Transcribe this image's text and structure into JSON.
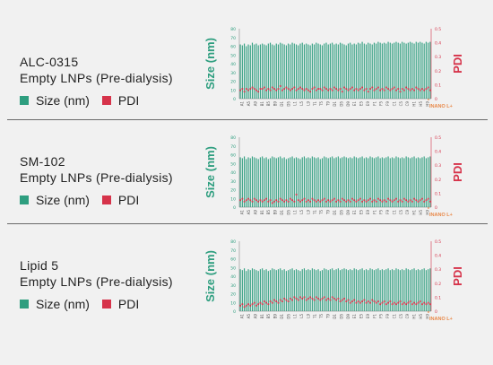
{
  "colors": {
    "size": "#2e9e7f",
    "pdi": "#d6334a",
    "inano": "#e8894a",
    "divider": "#6a6a6a"
  },
  "legend": {
    "size_label": "Size (nm)",
    "pdi_label": "PDI"
  },
  "chart_data": [
    {
      "type": "bar",
      "title": "ALC-0315",
      "subtitle": "Empty LNPs (Pre-dialysis)",
      "ylabel": "Size (nm)",
      "y2label": "PDI",
      "ylim": [
        0,
        80
      ],
      "y2lim": [
        0,
        0.5
      ],
      "yticks": [
        0,
        10,
        20,
        30,
        40,
        50,
        60,
        70,
        80
      ],
      "y2ticks": [
        "0",
        "0.1",
        "0.2",
        "0.3",
        "0.4",
        "0.5"
      ],
      "xticks": [
        "A1",
        "A5",
        "A9",
        "B1",
        "B5",
        "B9",
        "D1",
        "D5",
        "L1",
        "L5",
        "L9",
        "T1",
        "T5",
        "T9",
        "D1",
        "D5",
        "D9",
        "E1",
        "E5",
        "E9",
        "F1",
        "F5",
        "F9",
        "C1",
        "C5",
        "C9",
        "H1",
        "H5",
        "H9"
      ],
      "brand": "INANO L+",
      "size_values": [
        62,
        61,
        63,
        60,
        62,
        61,
        64,
        62,
        63,
        61,
        62,
        63,
        62,
        61,
        63,
        64,
        62,
        61,
        63,
        62,
        64,
        63,
        62,
        61,
        63,
        62,
        64,
        63,
        62,
        61,
        63,
        64,
        62,
        63,
        62,
        61,
        63,
        62,
        64,
        63,
        62,
        61,
        63,
        64,
        62,
        63,
        64,
        62,
        63,
        62,
        64,
        63,
        62,
        61,
        63,
        64,
        62,
        63,
        62,
        64,
        63,
        65,
        63,
        62,
        64,
        63,
        62,
        64,
        63,
        65,
        64,
        63,
        64,
        63,
        65,
        64,
        63,
        64,
        65,
        64,
        63,
        65,
        64,
        63,
        64,
        65,
        64,
        63,
        65,
        64,
        65,
        64,
        63,
        65,
        64,
        65
      ],
      "pdi_values": [
        0.06,
        0.07,
        0.05,
        0.07,
        0.06,
        0.07,
        0.08,
        0.07,
        0.06,
        0.05,
        0.07,
        0.07,
        0.08,
        0.06,
        0.07,
        0.06,
        0.08,
        0.07,
        0.06,
        0.07,
        0.09,
        0.06,
        0.07,
        0.08,
        0.07,
        0.06,
        0.07,
        0.08,
        0.06,
        0.07,
        0.08,
        0.07,
        0.06,
        0.07,
        0.06,
        0.05,
        0.07,
        0.08,
        0.06,
        0.07,
        0.07,
        0.06,
        0.08,
        0.07,
        0.06,
        0.07,
        0.06,
        0.08,
        0.07,
        0.06,
        0.07,
        0.05,
        0.08,
        0.07,
        0.06,
        0.07,
        0.08,
        0.06,
        0.07,
        0.06,
        0.07,
        0.08,
        0.06,
        0.07,
        0.05,
        0.07,
        0.08,
        0.06,
        0.07,
        0.08,
        0.06,
        0.07,
        0.06,
        0.08,
        0.07,
        0.06,
        0.07,
        0.08,
        0.06,
        0.07,
        0.05,
        0.07,
        0.06,
        0.08,
        0.07,
        0.06,
        0.07,
        0.06,
        0.08,
        0.07,
        0.06,
        0.07,
        0.06,
        0.07,
        0.08,
        0.06
      ]
    },
    {
      "type": "bar",
      "title": "SM-102",
      "subtitle": "Empty LNPs (Pre-dialysis)",
      "ylabel": "Size (nm)",
      "y2label": "PDI",
      "ylim": [
        0,
        80
      ],
      "y2lim": [
        0,
        0.5
      ],
      "yticks": [
        0,
        10,
        20,
        30,
        40,
        50,
        60,
        70,
        80
      ],
      "y2ticks": [
        "0",
        "0.1",
        "0.2",
        "0.3",
        "0.4",
        "0.5"
      ],
      "xticks": [
        "A1",
        "A5",
        "A9",
        "B1",
        "B5",
        "B9",
        "D1",
        "D5",
        "L1",
        "L5",
        "L9",
        "T1",
        "T5",
        "T9",
        "D1",
        "D5",
        "D9",
        "E1",
        "E5",
        "E9",
        "F1",
        "F5",
        "F9",
        "C1",
        "C5",
        "C9",
        "H1",
        "H5",
        "H9"
      ],
      "brand": "INANO L+",
      "size_values": [
        57,
        56,
        58,
        55,
        57,
        56,
        58,
        57,
        56,
        55,
        57,
        58,
        56,
        57,
        55,
        56,
        58,
        57,
        56,
        57,
        58,
        56,
        57,
        55,
        56,
        57,
        58,
        56,
        57,
        56,
        55,
        57,
        58,
        56,
        57,
        56,
        58,
        57,
        56,
        57,
        55,
        56,
        58,
        57,
        56,
        57,
        58,
        56,
        57,
        58,
        56,
        57,
        58,
        57,
        56,
        57,
        56,
        58,
        57,
        56,
        57,
        58,
        56,
        57,
        56,
        58,
        57,
        56,
        57,
        58,
        56,
        57,
        56,
        57,
        58,
        56,
        57,
        56,
        58,
        57,
        56,
        57,
        56,
        58,
        57,
        56,
        57,
        58,
        56,
        57,
        56,
        57,
        58,
        56,
        57,
        58
      ],
      "pdi_values": [
        0.05,
        0.06,
        0.04,
        0.05,
        0.06,
        0.05,
        0.04,
        0.06,
        0.05,
        0.04,
        0.05,
        0.04,
        0.05,
        0.06,
        0.04,
        0.05,
        0.03,
        0.04,
        0.05,
        0.04,
        0.06,
        0.05,
        0.04,
        0.05,
        0.04,
        0.06,
        0.05,
        0.04,
        0.09,
        0.05,
        0.04,
        0.05,
        0.06,
        0.04,
        0.05,
        0.04,
        0.06,
        0.05,
        0.04,
        0.05,
        0.04,
        0.05,
        0.06,
        0.04,
        0.05,
        0.04,
        0.05,
        0.06,
        0.04,
        0.05,
        0.04,
        0.06,
        0.05,
        0.04,
        0.05,
        0.04,
        0.06,
        0.05,
        0.04,
        0.05,
        0.06,
        0.04,
        0.05,
        0.04,
        0.05,
        0.06,
        0.04,
        0.05,
        0.04,
        0.06,
        0.05,
        0.04,
        0.05,
        0.04,
        0.06,
        0.05,
        0.04,
        0.05,
        0.06,
        0.04,
        0.05,
        0.04,
        0.06,
        0.05,
        0.04,
        0.05,
        0.04,
        0.06,
        0.05,
        0.04,
        0.05,
        0.06,
        0.04,
        0.05,
        0.06,
        0.04
      ]
    },
    {
      "type": "bar",
      "title": "Lipid 5",
      "subtitle": "Empty LNPs (Pre-dialysis)",
      "ylabel": "Size (nm)",
      "y2label": "PDI",
      "ylim": [
        0,
        80
      ],
      "y2lim": [
        0,
        0.5
      ],
      "yticks": [
        0,
        10,
        20,
        30,
        40,
        50,
        60,
        70,
        80
      ],
      "y2ticks": [
        "0",
        "0.1",
        "0.2",
        "0.3",
        "0.4",
        "0.5"
      ],
      "xticks": [
        "A1",
        "A5",
        "A9",
        "B1",
        "B5",
        "B9",
        "D1",
        "D5",
        "L1",
        "L5",
        "L9",
        "T1",
        "T5",
        "T9",
        "D1",
        "D5",
        "D9",
        "E1",
        "E5",
        "E9",
        "F1",
        "F5",
        "F9",
        "C1",
        "C5",
        "C9",
        "H1",
        "H5",
        "H9"
      ],
      "brand": "INANO L+",
      "size_values": [
        48,
        47,
        49,
        46,
        48,
        47,
        49,
        48,
        47,
        46,
        48,
        49,
        47,
        48,
        46,
        47,
        49,
        48,
        47,
        48,
        49,
        47,
        48,
        46,
        47,
        48,
        49,
        47,
        48,
        47,
        46,
        48,
        49,
        47,
        48,
        47,
        49,
        48,
        47,
        48,
        46,
        47,
        49,
        48,
        47,
        48,
        49,
        47,
        48,
        49,
        47,
        48,
        49,
        48,
        47,
        48,
        47,
        49,
        48,
        47,
        48,
        49,
        47,
        48,
        47,
        49,
        48,
        47,
        48,
        49,
        47,
        48,
        47,
        48,
        49,
        47,
        48,
        47,
        49,
        48,
        47,
        48,
        47,
        49,
        48,
        47,
        48,
        49,
        47,
        48,
        47,
        48,
        49,
        47,
        48,
        49
      ],
      "pdi_values": [
        0.04,
        0.05,
        0.03,
        0.04,
        0.05,
        0.04,
        0.05,
        0.06,
        0.04,
        0.05,
        0.06,
        0.05,
        0.07,
        0.06,
        0.05,
        0.07,
        0.06,
        0.08,
        0.07,
        0.06,
        0.08,
        0.07,
        0.09,
        0.08,
        0.07,
        0.09,
        0.08,
        0.1,
        0.09,
        0.08,
        0.1,
        0.09,
        0.1,
        0.08,
        0.09,
        0.1,
        0.09,
        0.08,
        0.1,
        0.09,
        0.08,
        0.09,
        0.1,
        0.08,
        0.09,
        0.08,
        0.1,
        0.09,
        0.08,
        0.09,
        0.07,
        0.08,
        0.09,
        0.07,
        0.08,
        0.06,
        0.07,
        0.08,
        0.06,
        0.07,
        0.06,
        0.07,
        0.08,
        0.06,
        0.07,
        0.06,
        0.08,
        0.07,
        0.06,
        0.07,
        0.05,
        0.06,
        0.07,
        0.05,
        0.06,
        0.07,
        0.05,
        0.06,
        0.05,
        0.06,
        0.07,
        0.05,
        0.06,
        0.05,
        0.06,
        0.07,
        0.05,
        0.06,
        0.05,
        0.06,
        0.07,
        0.05,
        0.06,
        0.05,
        0.06,
        0.05
      ]
    }
  ]
}
